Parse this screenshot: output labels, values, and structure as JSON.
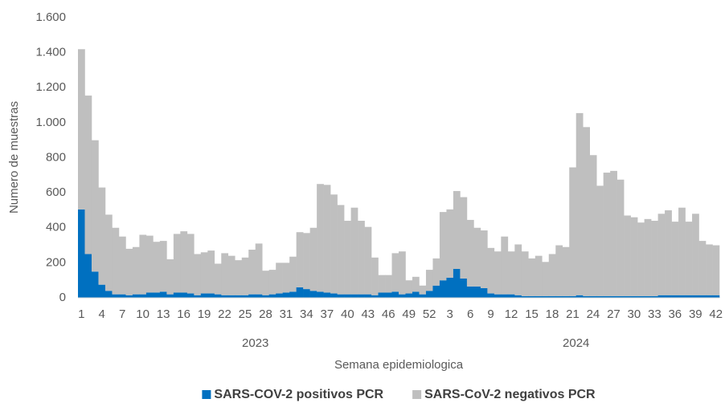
{
  "chart_data": {
    "type": "stacked_bar",
    "x_label": "Semana epidemiologica",
    "y_label": "Numero de muestras",
    "groups": [
      "2023",
      "2024"
    ],
    "categories": [
      "1",
      null,
      null,
      "4",
      null,
      null,
      "7",
      null,
      null,
      "10",
      null,
      null,
      "13",
      null,
      null,
      "16",
      null,
      null,
      "19",
      null,
      null,
      "22",
      null,
      null,
      "25",
      null,
      null,
      "28",
      null,
      null,
      "31",
      null,
      null,
      "34",
      null,
      null,
      "37",
      null,
      null,
      "40",
      null,
      null,
      "43",
      null,
      null,
      "46",
      null,
      null,
      "49",
      null,
      null,
      "52",
      null,
      null,
      "3",
      null,
      null,
      "6",
      null,
      null,
      "9",
      null,
      null,
      "12",
      null,
      null,
      "15",
      null,
      null,
      "18",
      null,
      null,
      "21",
      null,
      null,
      "24",
      null,
      null,
      "27",
      null,
      null,
      "30",
      null,
      null,
      "33",
      null,
      null,
      "36",
      null,
      null,
      "39",
      null,
      null,
      "42"
    ],
    "series": [
      {
        "name": "SARS-COV-2 positivos PCR",
        "color": "#0070c0",
        "values": [
          505,
          250,
          150,
          75,
          40,
          20,
          20,
          15,
          20,
          20,
          30,
          30,
          35,
          20,
          30,
          30,
          25,
          15,
          25,
          25,
          20,
          15,
          15,
          15,
          15,
          20,
          20,
          15,
          20,
          25,
          30,
          35,
          60,
          50,
          40,
          35,
          30,
          25,
          20,
          20,
          20,
          20,
          20,
          15,
          30,
          30,
          35,
          20,
          25,
          35,
          20,
          40,
          70,
          100,
          115,
          165,
          110,
          65,
          65,
          55,
          25,
          20,
          20,
          20,
          15,
          10,
          10,
          10,
          10,
          10,
          10,
          10,
          10,
          15,
          10,
          10,
          10,
          10,
          10,
          10,
          10,
          10,
          10,
          10,
          10,
          15,
          15,
          15,
          15,
          15,
          15,
          15,
          15,
          15
        ]
      },
      {
        "name": "SARS-CoV-2 negativos PCR",
        "color": "#bfbfbf",
        "values": [
          915,
          905,
          750,
          555,
          435,
          380,
          330,
          265,
          270,
          340,
          325,
          290,
          290,
          200,
          335,
          350,
          340,
          235,
          235,
          245,
          175,
          240,
          225,
          200,
          215,
          255,
          290,
          140,
          140,
          175,
          170,
          200,
          315,
          320,
          360,
          615,
          615,
          565,
          510,
          420,
          495,
          420,
          385,
          215,
          100,
          100,
          220,
          245,
          75,
          85,
          50,
          120,
          155,
          390,
          390,
          445,
          465,
          380,
          335,
          330,
          260,
          245,
          330,
          245,
          290,
          255,
          215,
          230,
          195,
          240,
          290,
          280,
          735,
          1040,
          965,
          805,
          630,
          705,
          715,
          665,
          460,
          450,
          420,
          440,
          430,
          465,
          485,
          420,
          500,
          420,
          465,
          310,
          290,
          285
        ]
      }
    ],
    "ylim": [
      0,
      1600
    ],
    "yticks": [
      0,
      200,
      400,
      600,
      800,
      {
        "value": 1000,
        "label": "1.000"
      },
      {
        "value": 1200,
        "label": "1.200"
      },
      {
        "value": 1400,
        "label": "1.400"
      },
      {
        "value": 1600,
        "label": "1.600"
      }
    ],
    "grid": false,
    "legend": "bottom"
  }
}
